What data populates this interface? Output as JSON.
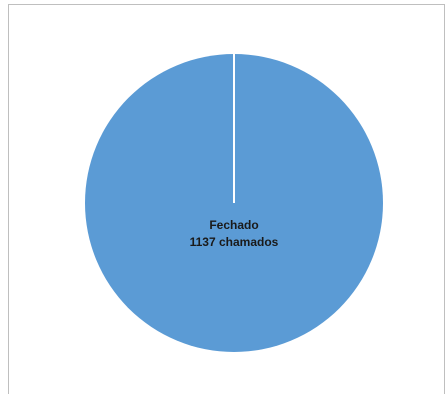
{
  "chart_data": {
    "type": "pie",
    "title": "",
    "slices": [
      {
        "label": "Fechado",
        "value": 1137,
        "value_label": "1137 chamados",
        "color": "#5b9bd5"
      }
    ],
    "legend": "none"
  },
  "colors": {
    "slice_border": "#ffffff",
    "frame_border": "#bfbfbf",
    "label_text": "#1a1a1a"
  }
}
